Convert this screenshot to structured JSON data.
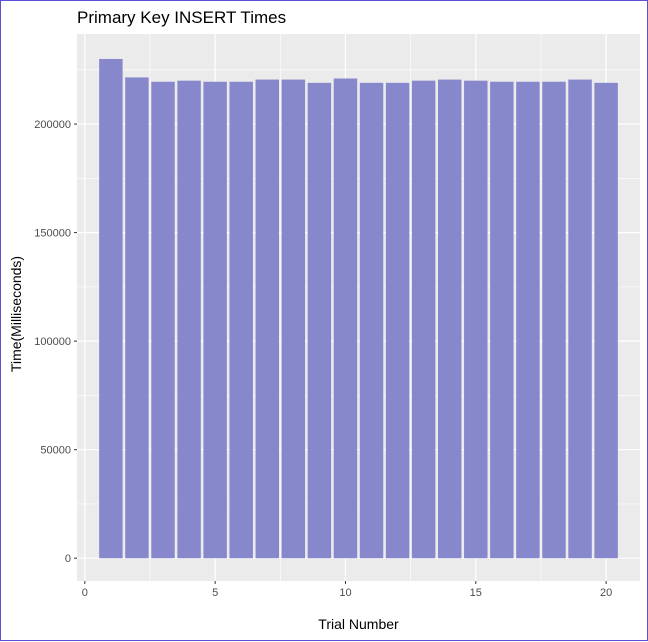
{
  "chart_data": {
    "type": "bar",
    "title": "Primary Key INSERT Times",
    "xlabel": "Trial Number",
    "ylabel": "Time(Milliseconds)",
    "x": [
      1,
      2,
      3,
      4,
      5,
      6,
      7,
      8,
      9,
      10,
      11,
      12,
      13,
      14,
      15,
      16,
      17,
      18,
      19,
      20
    ],
    "values": [
      230000,
      221500,
      219500,
      220000,
      219500,
      219500,
      220500,
      220500,
      219000,
      221000,
      219000,
      219000,
      220000,
      220500,
      220000,
      219500,
      219500,
      219500,
      220500,
      219000
    ],
    "xlim": [
      -0.3,
      21.3
    ],
    "ylim": [
      -10500,
      241500
    ],
    "xticks": [
      0,
      5,
      10,
      15,
      20
    ],
    "yticks": [
      0,
      50000,
      100000,
      150000,
      200000
    ],
    "xtick_labels": [
      "0",
      "5",
      "10",
      "15",
      "20"
    ],
    "ytick_labels": [
      "0",
      "50000",
      "100000",
      "150000",
      "200000"
    ],
    "grid": true,
    "colors": {
      "bar": "#8787cc",
      "panel": "#ebebeb",
      "grid": "#ffffff",
      "border": "#5b4fd6"
    }
  }
}
